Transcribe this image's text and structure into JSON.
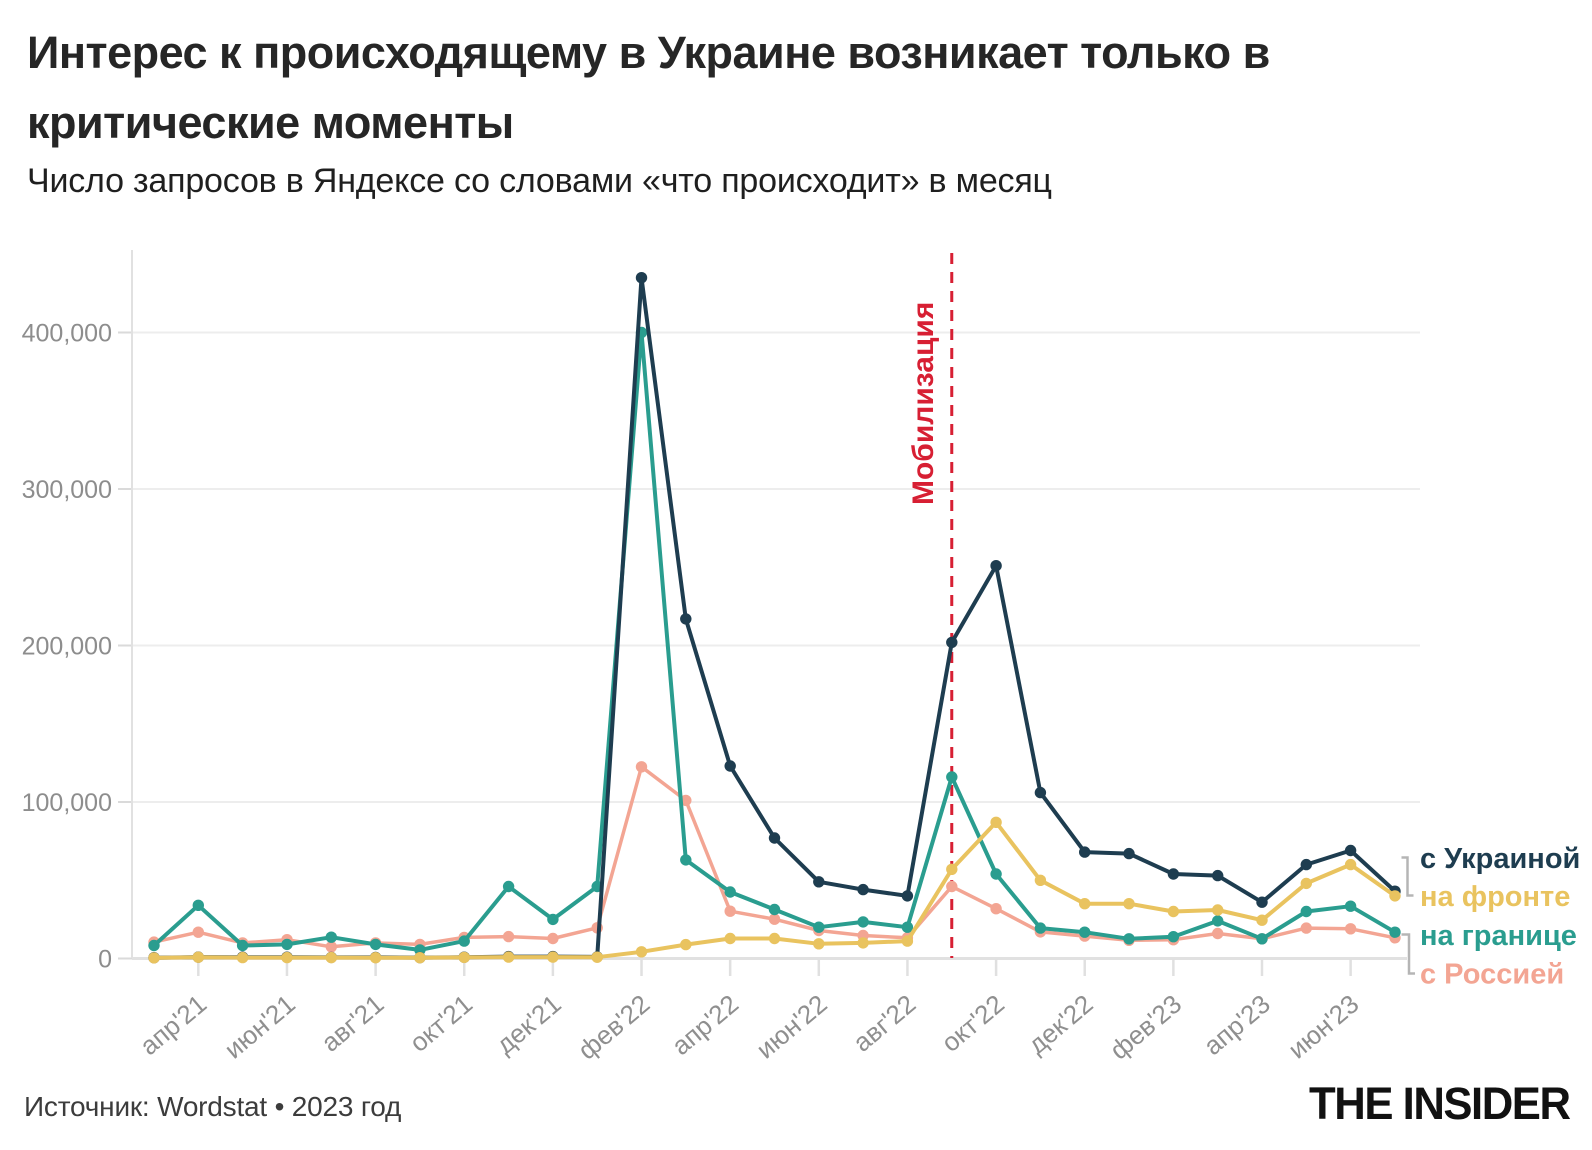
{
  "header": {
    "title_line1": "Интерес к происходящему в Украине возникает только в",
    "title_line2": "критические моменты",
    "subtitle": "Число запросов в Яндексе со словами «что происходит» в месяц"
  },
  "footer": {
    "source": "Источник: Wordstat • 2023 год",
    "logo": "THE INSIDER"
  },
  "chart_data": {
    "type": "line",
    "months": [
      "мар'21",
      "апр'21",
      "май'21",
      "июн'21",
      "июл'21",
      "авг'21",
      "сен'21",
      "окт'21",
      "ноя'21",
      "дек'21",
      "янв'22",
      "фев'22",
      "мар'22",
      "апр'22",
      "май'22",
      "июн'22",
      "июл'22",
      "авг'22",
      "сен'22",
      "окт'22",
      "ноя'22",
      "дек'22",
      "янв'23",
      "фев'23",
      "мар'23",
      "апр'23",
      "май'23",
      "июн'23",
      "июл'23"
    ],
    "x_ticks": [
      [
        1,
        "апр'21"
      ],
      [
        3,
        "июн'21"
      ],
      [
        5,
        "авг'21"
      ],
      [
        7,
        "окт'21"
      ],
      [
        9,
        "дек'21"
      ],
      [
        11,
        "фев'22"
      ],
      [
        13,
        "апр'22"
      ],
      [
        15,
        "июн'22"
      ],
      [
        17,
        "авг'22"
      ],
      [
        19,
        "окт'22"
      ],
      [
        21,
        "дек'22"
      ],
      [
        23,
        "фев'23"
      ],
      [
        25,
        "апр'23"
      ],
      [
        27,
        "июн'23"
      ]
    ],
    "y_ticks": [
      [
        0,
        "0"
      ],
      [
        100000,
        "100,000"
      ],
      [
        200000,
        "200,000"
      ],
      [
        300000,
        "300,000"
      ],
      [
        400000,
        "400,000"
      ]
    ],
    "ylim": [
      0,
      450000
    ],
    "grid": true,
    "legend_position": "right",
    "series": [
      {
        "name": "с Украиной",
        "color": "#1e3d50",
        "values": [
          500,
          900,
          800,
          800,
          700,
          700,
          600,
          800,
          1200,
          1200,
          1000,
          435000,
          217000,
          123000,
          77000,
          49000,
          44000,
          40000,
          202000,
          251000,
          106000,
          68000,
          67000,
          54000,
          53000,
          36000,
          60000,
          69000,
          43000
        ]
      },
      {
        "name": "на фронте",
        "color": "#e9c35f",
        "values": [
          400,
          800,
          600,
          600,
          600,
          500,
          500,
          700,
          900,
          900,
          800,
          4300,
          8900,
          12800,
          12800,
          9400,
          10000,
          11100,
          57000,
          87000,
          50000,
          35000,
          35000,
          30000,
          31000,
          24500,
          48000,
          60000,
          40000
        ]
      },
      {
        "name": "на границе",
        "color": "#2a9d8f",
        "values": [
          8300,
          34000,
          8300,
          9000,
          13600,
          9000,
          5500,
          11100,
          46000,
          25000,
          46000,
          400000,
          63000,
          42500,
          31300,
          20000,
          23400,
          20000,
          116000,
          54000,
          19400,
          16800,
          12600,
          13900,
          24000,
          12600,
          30000,
          33400,
          16800
        ]
      },
      {
        "name": "с Россией",
        "color": "#f3a593",
        "values": [
          10500,
          16800,
          10000,
          12000,
          7500,
          10000,
          9000,
          13500,
          14000,
          12800,
          19600,
          122500,
          101000,
          30200,
          25100,
          17900,
          14700,
          13200,
          46000,
          31800,
          17000,
          14300,
          11600,
          12000,
          16000,
          12600,
          19400,
          19000,
          13200
        ]
      }
    ],
    "annotation": {
      "label": "Мобилизация",
      "month": "сен'22",
      "color": "#d71f33"
    }
  }
}
